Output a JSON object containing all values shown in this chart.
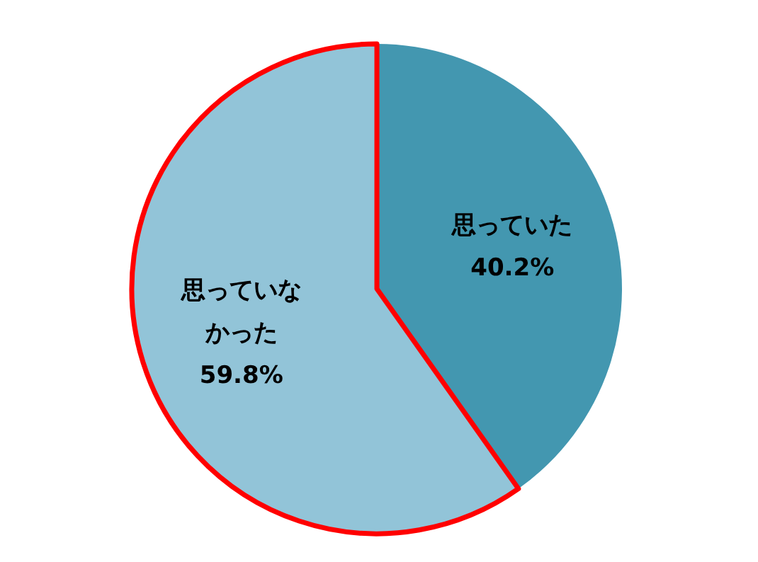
{
  "chart_data": {
    "type": "pie",
    "categories": [
      "思っていた",
      "思っていなかった"
    ],
    "values": [
      40.2,
      59.8
    ],
    "colors": [
      "#4397b0",
      "#92c4d8"
    ],
    "value_labels": [
      "40.2%",
      "59.8%"
    ]
  }
}
